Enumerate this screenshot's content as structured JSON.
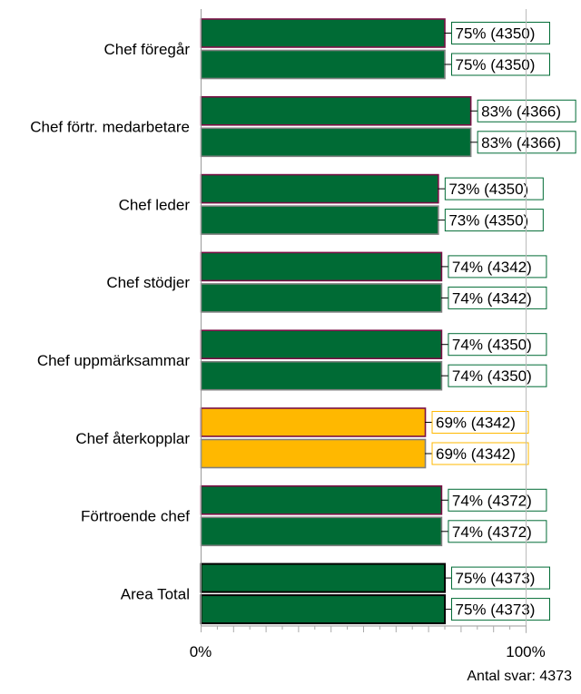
{
  "chart_data": {
    "type": "bar",
    "orientation": "horizontal",
    "categories": [
      "Chef föregår",
      "Chef förtr. medarbetare",
      "Chef leder",
      "Chef stödjer",
      "Chef uppmärksammar",
      "Chef återkopplar",
      "Förtroende chef",
      "Area Total"
    ],
    "series": [
      {
        "values": [
          75,
          83,
          73,
          74,
          74,
          69,
          74,
          75
        ],
        "counts": [
          4350,
          4366,
          4350,
          4342,
          4350,
          4342,
          4372,
          4373
        ],
        "labels": [
          "75% (4350)",
          "83% (4366)",
          "73% (4350)",
          "74% (4342)",
          "74% (4350)",
          "69% (4342)",
          "74% (4372)",
          "75% (4373)"
        ]
      },
      {
        "values": [
          75,
          83,
          73,
          74,
          74,
          69,
          74,
          75
        ],
        "counts": [
          4350,
          4366,
          4350,
          4342,
          4350,
          4342,
          4372,
          4373
        ],
        "labels": [
          "75% (4350)",
          "83% (4366)",
          "73% (4350)",
          "74% (4342)",
          "74% (4350)",
          "69% (4342)",
          "74% (4372)",
          "75% (4373)"
        ]
      }
    ],
    "bar_colors": [
      "#006B35",
      "#006B35",
      "#006B35",
      "#006B35",
      "#006B35",
      "#FFB800",
      "#006B35",
      "#006B35"
    ],
    "xlim": [
      0,
      100
    ],
    "xticks": [
      "0%",
      "100%"
    ],
    "grid": false,
    "legend": "none"
  },
  "footer": {
    "note": "Antal svar: 4373"
  }
}
